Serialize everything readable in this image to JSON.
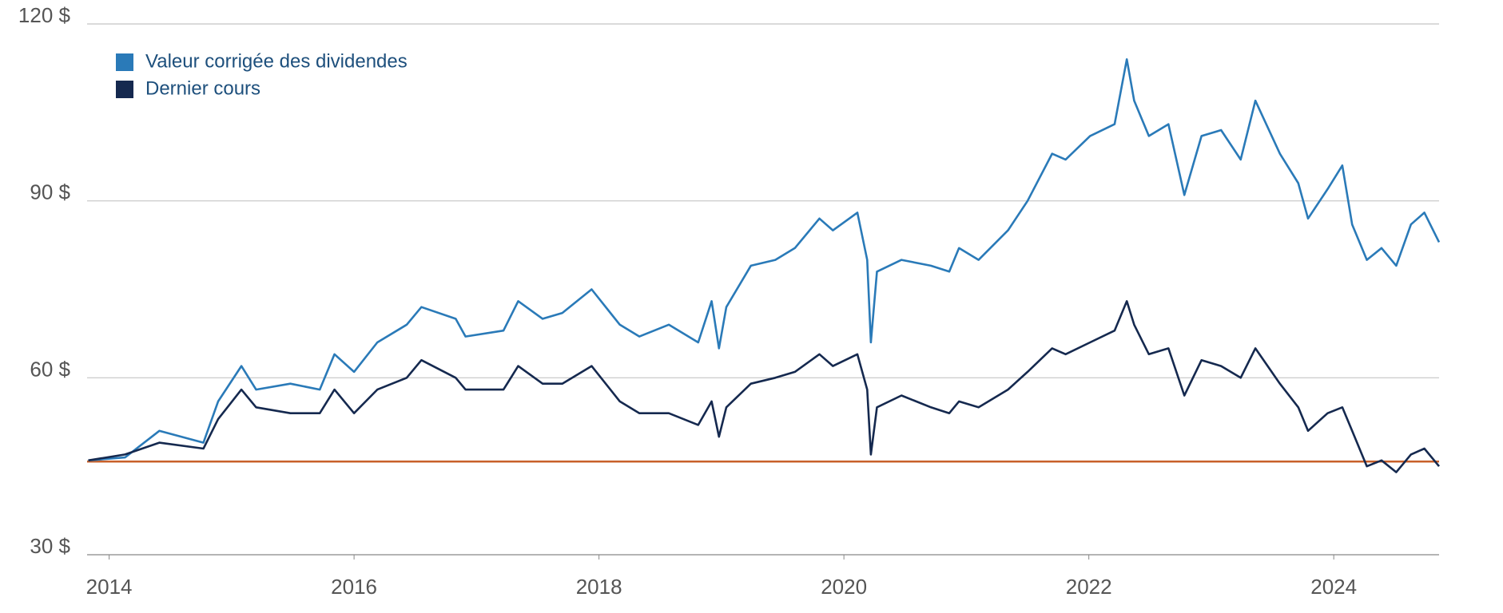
{
  "chart_data": {
    "type": "line",
    "x": [
      2013.83,
      2014.13,
      2014.41,
      2014.77,
      2014.89,
      2015.08,
      2015.2,
      2015.48,
      2015.72,
      2015.84,
      2016.0,
      2016.19,
      2016.43,
      2016.55,
      2016.83,
      2016.91,
      2017.22,
      2017.34,
      2017.54,
      2017.7,
      2017.94,
      2018.17,
      2018.33,
      2018.57,
      2018.81,
      2018.92,
      2018.98,
      2019.04,
      2019.24,
      2019.44,
      2019.6,
      2019.8,
      2019.91,
      2020.11,
      2020.19,
      2020.22,
      2020.27,
      2020.47,
      2020.71,
      2020.86,
      2020.94,
      2021.1,
      2021.34,
      2021.5,
      2021.7,
      2021.81,
      2022.01,
      2022.21,
      2022.31,
      2022.37,
      2022.49,
      2022.65,
      2022.78,
      2022.92,
      2023.08,
      2023.24,
      2023.36,
      2023.56,
      2023.71,
      2023.79,
      2023.95,
      2024.07,
      2024.15,
      2024.27,
      2024.39,
      2024.51,
      2024.63,
      2024.74,
      2024.86
    ],
    "series": [
      {
        "name": "Valeur corrigée des dividendes",
        "color": "#2a7ab8",
        "values": [
          46,
          46.5,
          51,
          49,
          56,
          62,
          58,
          59,
          58,
          64,
          61,
          66,
          69,
          72,
          70,
          67,
          68,
          73,
          70,
          71,
          75,
          69,
          67,
          69,
          66,
          73,
          65,
          72,
          79,
          80,
          82,
          87,
          85,
          88,
          80,
          66,
          78,
          80,
          79,
          78,
          82,
          80,
          85,
          90,
          98,
          97,
          101,
          103,
          114,
          107,
          101,
          103,
          91,
          101,
          102,
          97,
          107,
          98,
          93,
          87,
          92,
          96,
          86,
          80,
          82,
          79,
          86,
          88,
          83
        ]
      },
      {
        "name": "Dernier cours",
        "color": "#15294f",
        "values": [
          46,
          47,
          49,
          48,
          53,
          58,
          55,
          54,
          54,
          58,
          54,
          58,
          60,
          63,
          60,
          58,
          58,
          62,
          59,
          59,
          62,
          56,
          54,
          54,
          52,
          56,
          50,
          55,
          59,
          60,
          61,
          64,
          62,
          64,
          58,
          47,
          55,
          57,
          55,
          54,
          56,
          55,
          58,
          61,
          65,
          64,
          66,
          68,
          73,
          69,
          64,
          65,
          57,
          63,
          62,
          60,
          65,
          59,
          55,
          51,
          54,
          55,
          51,
          45,
          46,
          44,
          47,
          48,
          45
        ]
      }
    ],
    "reference_line": {
      "value": 45.8,
      "color": "#c8602a"
    },
    "xlim": [
      2013.82,
      2024.86
    ],
    "xticks": [
      2014,
      2016,
      2018,
      2020,
      2022,
      2024
    ],
    "ylim": [
      30,
      120
    ],
    "yticks": [
      {
        "value": 30,
        "label": "30 $"
      },
      {
        "value": 60,
        "label": "60 $"
      },
      {
        "value": 90,
        "label": "90 $"
      },
      {
        "value": 120,
        "label": "120 $"
      }
    ],
    "grid": true
  }
}
